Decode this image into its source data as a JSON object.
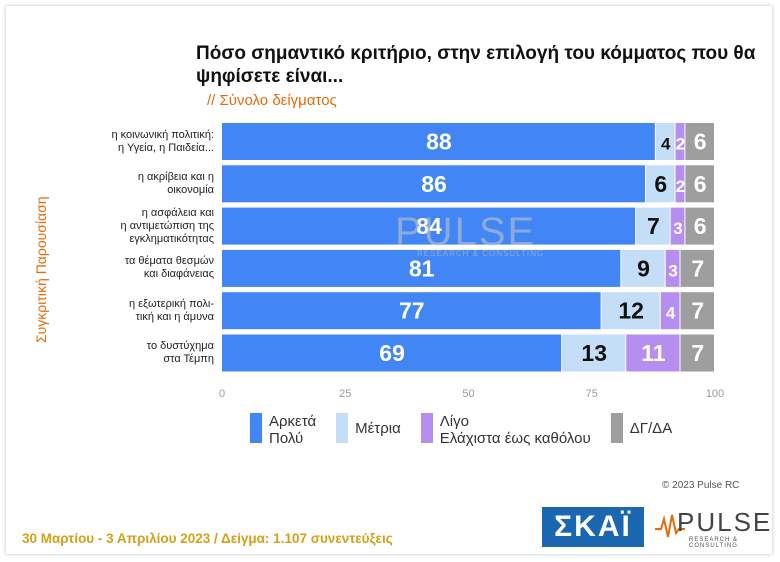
{
  "title": "Πόσο σημαντικό κριτήριο, στην επιλογή του κόμματος που θα ψηφίσετε είναι...",
  "subtitle": "// Σύνολο δείγματος",
  "side_label": "Συγκριτική Παρουσίαση",
  "watermark": {
    "word": "PULSE",
    "tag": "RESEARCH & CONSULTING"
  },
  "copyright": "© 2023 Pulse RC",
  "footer": "30 Μαρτίου - 3 Απριλίου 2023 / Δείγμα: 1.107 συνεντεύξεις",
  "logos": {
    "skai": "ΣΚΑΪ",
    "pulse": "PULSE",
    "pulse_tag": "RESEARCH & CONSULTING"
  },
  "legend": [
    {
      "label": "Αρκετά\nΠολύ",
      "color": "#4285f4"
    },
    {
      "label": "Μέτρια",
      "color": "#c5def7"
    },
    {
      "label": "Λίγο\nΕλάχιστα έως καθόλου",
      "color": "#b58ef0"
    },
    {
      "label": "ΔΓ/ΔΑ",
      "color": "#9e9e9e"
    }
  ],
  "chart_data": {
    "type": "bar",
    "orientation": "horizontal",
    "stacked": true,
    "categories": [
      "η κοινωνική πολιτική:\nη Υγεία, η Παιδεία...",
      "η ακρίβεια και η\nοικονομία",
      "η ασφάλεια και\nη αντιμετώπιση της\nεγκληματικότητας",
      "τα θέματα θεσμών\nκαι διαφάνειας",
      "η εξωτερική πολι-\nτική και η άμυνα",
      "το δυστύχημα\nστα Τέμπη"
    ],
    "series": [
      {
        "name": "Αρκετά Πολύ",
        "color": "#4285f4",
        "label_color": "#ffffff",
        "values": [
          88,
          86,
          84,
          81,
          77,
          69
        ]
      },
      {
        "name": "Μέτρια",
        "color": "#c5def7",
        "label_color": "#111111",
        "values": [
          4,
          6,
          7,
          9,
          12,
          13
        ]
      },
      {
        "name": "Λίγο Ελάχιστα έως καθόλου",
        "color": "#b58ef0",
        "label_color": "#ffffff",
        "values": [
          2,
          2,
          3,
          3,
          4,
          11
        ]
      },
      {
        "name": "ΔΓ/ΔΑ",
        "color": "#9e9e9e",
        "label_color": "#ffffff",
        "values": [
          6,
          6,
          6,
          7,
          7,
          7
        ]
      }
    ],
    "xlim": [
      0,
      100
    ],
    "xticks": [
      0,
      25,
      50,
      75,
      100
    ],
    "grid": false,
    "legend_position": "bottom"
  }
}
